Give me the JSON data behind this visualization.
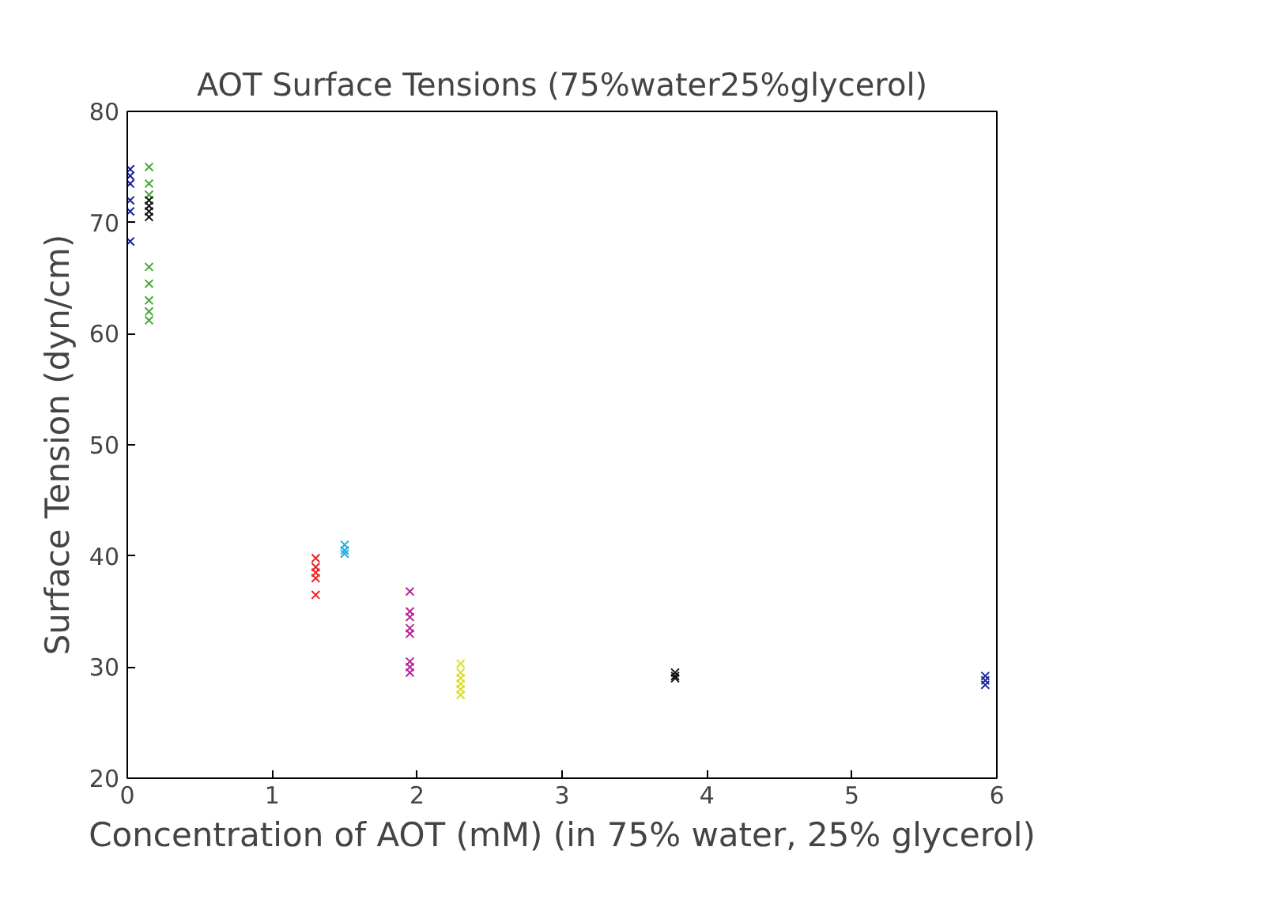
{
  "chart_data": {
    "type": "scatter",
    "title": "AOT Surface Tensions (75%water25%glycerol)",
    "xlabel": "Concentration of AOT (mM) (in 75% water, 25% glycerol)",
    "ylabel": "Surface Tension (dyn/cm)",
    "xlim": [
      0,
      6
    ],
    "ylim": [
      20,
      80
    ],
    "xticks": [
      0,
      1,
      2,
      3,
      4,
      5,
      6
    ],
    "yticks": [
      20,
      30,
      40,
      50,
      60,
      70,
      80
    ],
    "grid": false,
    "marker": "cross",
    "series": [
      {
        "color": "#1a1aa0",
        "x": [
          0.02,
          0.02,
          0.02,
          0.02,
          0.02,
          0.02
        ],
        "values": [
          74.8,
          74.2,
          73.5,
          72,
          71,
          68.3
        ]
      },
      {
        "color": "#44aa33",
        "x": [
          0.15,
          0.15,
          0.15,
          0.15,
          0.15,
          0.15,
          0.15,
          0.15
        ],
        "values": [
          75,
          73.5,
          72.5,
          66,
          64.5,
          63,
          62,
          61.2
        ]
      },
      {
        "color": "#111111",
        "x": [
          0.15,
          0.15,
          0.15,
          0.15
        ],
        "values": [
          72,
          71.5,
          71,
          70.5
        ]
      },
      {
        "color": "#ee2222",
        "x": [
          1.3,
          1.3,
          1.3,
          1.3,
          1.3
        ],
        "values": [
          39.8,
          39,
          38.5,
          38,
          36.5
        ]
      },
      {
        "color": "#22aadd",
        "x": [
          1.5,
          1.5,
          1.5
        ],
        "values": [
          41,
          40.5,
          40.2
        ]
      },
      {
        "color": "#bb2299",
        "x": [
          1.95,
          1.95,
          1.95,
          1.95,
          1.95,
          1.95,
          1.95,
          1.95
        ],
        "values": [
          36.8,
          35,
          34.5,
          33.5,
          33,
          30.5,
          30,
          29.5
        ]
      },
      {
        "color": "#dddd22",
        "x": [
          2.3,
          2.3,
          2.3,
          2.3,
          2.3,
          2.3
        ],
        "values": [
          30.3,
          29.5,
          29,
          28.5,
          28,
          27.5
        ]
      },
      {
        "color": "#111111",
        "x": [
          3.78,
          3.78,
          3.78
        ],
        "values": [
          29.5,
          29.2,
          29
        ]
      },
      {
        "color": "#1a2a99",
        "x": [
          5.92,
          5.92,
          5.92
        ],
        "values": [
          29.2,
          28.8,
          28.4
        ]
      }
    ]
  }
}
